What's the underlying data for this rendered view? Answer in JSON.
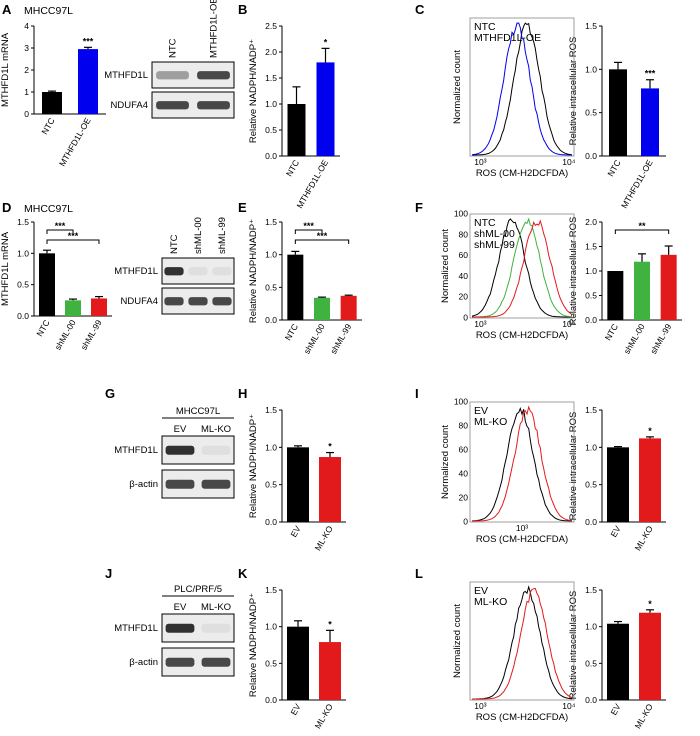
{
  "panel_letters": [
    "A",
    "B",
    "C",
    "D",
    "E",
    "F",
    "G",
    "H",
    "I",
    "J",
    "K",
    "L"
  ],
  "cell_lines": {
    "A": "MHCC97L",
    "D": "MHCC97L",
    "G": "MHCC97L",
    "J": "PLC/PRF/5"
  },
  "blot_lanes": {
    "A": [
      "NTC",
      "MTHFD1L-OE"
    ],
    "D": [
      "NTC",
      "shML-00",
      "shML-99"
    ],
    "G": [
      "EV",
      "ML-KO"
    ],
    "J": [
      "EV",
      "ML-KO"
    ]
  },
  "blot_rows": {
    "A": [
      "MTHFD1L",
      "NDUFA4"
    ],
    "D": [
      "MTHFD1L",
      "NDUFA4"
    ],
    "G": [
      "MTHFD1L",
      "β-actin"
    ],
    "J": [
      "MTHFD1L",
      "β-actin"
    ]
  },
  "colors": {
    "black": "#000000",
    "blue": "#0000ee",
    "green": "#3fb23f",
    "red": "#e31a1c",
    "gray": "#555555"
  },
  "flow_axis": {
    "xlabel": "ROS (CM-H2DCFDA)",
    "ylabel": "Normalized count"
  },
  "flow_panels": {
    "C": {
      "legend": [
        "NTC",
        "MTHFD1L-OE"
      ],
      "colors": [
        "#000000",
        "#0000ee"
      ],
      "yticks": [],
      "xticks": [
        "10³",
        "10⁴"
      ]
    },
    "F": {
      "legend": [
        "NTC",
        "shML-00",
        "shML-99"
      ],
      "colors": [
        "#000000",
        "#3fb23f",
        "#e31a1c"
      ],
      "yticks": [
        "0",
        "20",
        "40",
        "60",
        "80",
        "100"
      ],
      "xticks": [
        "10³",
        "10⁴"
      ]
    },
    "I": {
      "legend": [
        "EV",
        "ML-KO"
      ],
      "colors": [
        "#000000",
        "#e31a1c"
      ],
      "yticks": [
        "0",
        "20",
        "40",
        "60",
        "80",
        "100"
      ],
      "xticks": [
        "10³"
      ]
    },
    "L": {
      "legend": [
        "EV",
        "ML-KO"
      ],
      "colors": [
        "#000000",
        "#e31a1c"
      ],
      "yticks": [],
      "xticks": [
        "10³",
        "10⁴"
      ]
    }
  },
  "chart_data": [
    {
      "id": "A",
      "type": "bar",
      "categories": [
        "NTC",
        "MTHFD1L-OE"
      ],
      "values": [
        1.0,
        2.95
      ],
      "errors": [
        0.04,
        0.08
      ],
      "colors": [
        "#000000",
        "#0000ee"
      ],
      "ylabel": "MTHFD1L mRNA",
      "ylim": [
        0,
        4
      ],
      "yticks": [
        0,
        1,
        2,
        3,
        4
      ],
      "sig": [
        {
          "bar": 1,
          "text": "***"
        }
      ]
    },
    {
      "id": "B",
      "type": "bar",
      "categories": [
        "NTC",
        "MTHFD1L-OE"
      ],
      "values": [
        1.0,
        1.8
      ],
      "errors": [
        0.33,
        0.27
      ],
      "colors": [
        "#000000",
        "#0000ee"
      ],
      "ylabel": "Relative NADPH/NADP⁺",
      "ylim": [
        0,
        2.5
      ],
      "yticks": [
        0,
        0.5,
        1.0,
        1.5,
        2.0,
        2.5
      ],
      "sig": [
        {
          "bar": 1,
          "text": "*"
        }
      ]
    },
    {
      "id": "C2",
      "type": "bar",
      "categories": [
        "NTC",
        "MTHFD1L-OE"
      ],
      "values": [
        1.0,
        0.78
      ],
      "errors": [
        0.08,
        0.1
      ],
      "colors": [
        "#000000",
        "#0000ee"
      ],
      "ylabel": "Relative intracellular ROS",
      "ylim": [
        0,
        1.5
      ],
      "yticks": [
        0,
        0.5,
        1.0,
        1.5
      ],
      "sig": [
        {
          "bar": 1,
          "text": "***"
        }
      ]
    },
    {
      "id": "D",
      "type": "bar",
      "categories": [
        "NTC",
        "shML-00",
        "shML-99"
      ],
      "values": [
        1.0,
        0.25,
        0.28
      ],
      "errors": [
        0.05,
        0.02,
        0.03
      ],
      "colors": [
        "#000000",
        "#3fb23f",
        "#e31a1c"
      ],
      "ylabel": "MTHFD1L mRNA",
      "ylim": [
        0,
        1.5
      ],
      "yticks": [
        0,
        0.5,
        1.0,
        1.5
      ],
      "brackets": [
        {
          "from": 0,
          "to": 1,
          "text": "***"
        },
        {
          "from": 0,
          "to": 2,
          "text": "***"
        }
      ]
    },
    {
      "id": "E",
      "type": "bar",
      "categories": [
        "NTC",
        "shML-00",
        "shML-99"
      ],
      "values": [
        1.0,
        0.34,
        0.37
      ],
      "errors": [
        0.05,
        0.01,
        0.01
      ],
      "colors": [
        "#000000",
        "#3fb23f",
        "#e31a1c"
      ],
      "ylabel": "Relative NADPH/NADP⁺",
      "ylim": [
        0,
        1.5
      ],
      "yticks": [
        0,
        0.5,
        1.0,
        1.5
      ],
      "brackets": [
        {
          "from": 0,
          "to": 1,
          "text": "***"
        },
        {
          "from": 0,
          "to": 2,
          "text": "***"
        }
      ]
    },
    {
      "id": "F2",
      "type": "bar",
      "categories": [
        "NTC",
        "shML-00",
        "shML-99"
      ],
      "values": [
        1.0,
        1.19,
        1.33
      ],
      "errors": [
        0.0,
        0.16,
        0.18
      ],
      "colors": [
        "#000000",
        "#3fb23f",
        "#e31a1c"
      ],
      "ylabel": "Relative intracellular ROS",
      "ylim": [
        0,
        2.0
      ],
      "yticks": [
        0,
        0.5,
        1.0,
        1.5,
        2.0
      ],
      "brackets": [
        {
          "from": 0,
          "to": 2,
          "text": "**"
        }
      ]
    },
    {
      "id": "H",
      "type": "bar",
      "categories": [
        "EV",
        "ML-KO"
      ],
      "values": [
        1.0,
        0.87
      ],
      "errors": [
        0.02,
        0.06
      ],
      "colors": [
        "#000000",
        "#e31a1c"
      ],
      "ylabel": "Relative NADPH/NADP⁺",
      "ylim": [
        0,
        1.5
      ],
      "yticks": [
        0,
        0.5,
        1.0,
        1.5
      ],
      "sig": [
        {
          "bar": 1,
          "text": "*"
        }
      ]
    },
    {
      "id": "I2",
      "type": "bar",
      "categories": [
        "EV",
        "ML-KO"
      ],
      "values": [
        1.0,
        1.12
      ],
      "errors": [
        0.01,
        0.02
      ],
      "colors": [
        "#000000",
        "#e31a1c"
      ],
      "ylabel": "Relative intracellular ROS",
      "ylim": [
        0,
        1.5
      ],
      "yticks": [
        0,
        0.5,
        1.0,
        1.5
      ],
      "sig": [
        {
          "bar": 1,
          "text": "*"
        }
      ]
    },
    {
      "id": "K",
      "type": "bar",
      "categories": [
        "EV",
        "ML-KO"
      ],
      "values": [
        1.0,
        0.79
      ],
      "errors": [
        0.08,
        0.16
      ],
      "colors": [
        "#000000",
        "#e31a1c"
      ],
      "ylabel": "Relative NADPH/NADP⁺",
      "ylim": [
        0,
        1.5
      ],
      "yticks": [
        0,
        0.5,
        1.0,
        1.5
      ],
      "sig": [
        {
          "bar": 1,
          "text": "*"
        }
      ]
    },
    {
      "id": "L2",
      "type": "bar",
      "categories": [
        "EV",
        "ML-KO"
      ],
      "values": [
        1.04,
        1.19
      ],
      "errors": [
        0.03,
        0.04
      ],
      "colors": [
        "#000000",
        "#e31a1c"
      ],
      "ylabel": "Relative intracellular ROS",
      "ylim": [
        0,
        1.5
      ],
      "yticks": [
        0,
        0.5,
        1.0,
        1.5
      ],
      "sig": [
        {
          "bar": 1,
          "text": "*"
        }
      ]
    }
  ]
}
